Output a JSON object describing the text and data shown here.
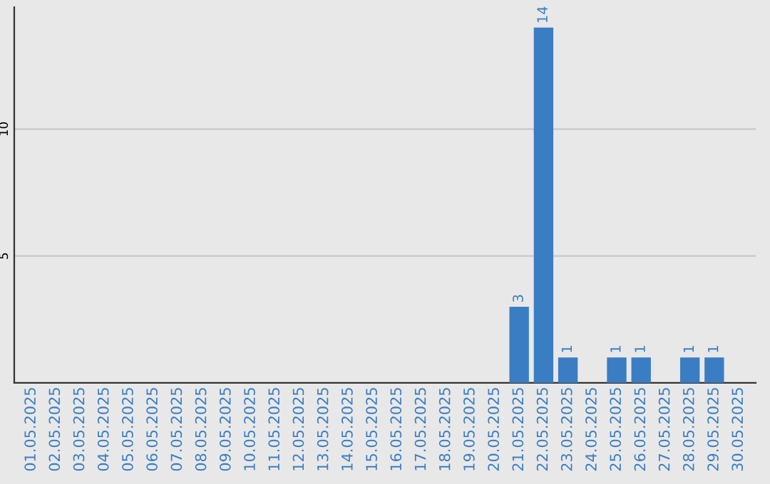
{
  "chart_data": {
    "type": "bar",
    "categories": [
      "01.05.2025",
      "02.05.2025",
      "03.05.2025",
      "04.05.2025",
      "05.05.2025",
      "06.05.2025",
      "07.05.2025",
      "08.05.2025",
      "09.05.2025",
      "10.05.2025",
      "11.05.2025",
      "12.05.2025",
      "13.05.2025",
      "14.05.2025",
      "15.05.2025",
      "16.05.2025",
      "17.05.2025",
      "18.05.2025",
      "19.05.2025",
      "20.05.2025",
      "21.05.2025",
      "22.05.2025",
      "23.05.2025",
      "24.05.2025",
      "25.05.2025",
      "26.05.2025",
      "27.05.2025",
      "28.05.2025",
      "29.05.2025",
      "30.05.2025"
    ],
    "values": [
      0,
      0,
      0,
      0,
      0,
      0,
      0,
      0,
      0,
      0,
      0,
      0,
      0,
      0,
      0,
      0,
      0,
      0,
      0,
      0,
      3,
      14,
      1,
      0,
      1,
      1,
      0,
      1,
      1,
      0
    ],
    "value_labels": [
      null,
      null,
      null,
      null,
      null,
      null,
      null,
      null,
      null,
      null,
      null,
      null,
      null,
      null,
      null,
      null,
      null,
      null,
      null,
      null,
      "3",
      "14",
      "1",
      null,
      "1",
      "1",
      null,
      "1",
      "1",
      null
    ],
    "color": "#3a7dc3",
    "ylim": [
      0,
      14.8
    ],
    "yticks": [
      5,
      10
    ],
    "grid": "y"
  }
}
